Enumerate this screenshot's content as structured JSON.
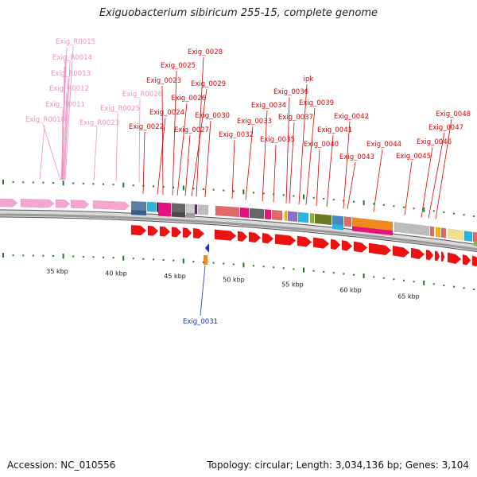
{
  "title": "Exiguobacterium sibiricum 255-15, complete genome",
  "footer": {
    "accession": "Accession: NC_010556",
    "topology": "Topology: circular; Length: 3,034,136 bp; Genes: 3,104"
  },
  "colors": {
    "forward_rna": "#f4a6cf",
    "reverse_cds": "#ee1111",
    "forward_label": "#dd0000",
    "rna_label": "#f08fbf",
    "reverse_label": "#1a2fcc",
    "tick": "#1f7a1f",
    "backbone": "#b8b8b8"
  },
  "scale": {
    "ticks": [
      "35 kbp",
      "40 kbp",
      "45 kbp",
      "50 kbp",
      "55 kbp",
      "60 kbp",
      "65 kbp"
    ]
  },
  "rna_labels": [
    "Exig_R0015",
    "Exig_R0014",
    "Exig_R0013",
    "Exig_R0012",
    "Exig_R0011",
    "Exig_R0010",
    "Exig_R0026",
    "Exig_R0025",
    "Exig_R0023"
  ],
  "gene_labels": [
    "Exig_0028",
    "Exig_0025",
    "Exig_0023",
    "Exig_0029",
    "Exig_0026",
    "Exig_0024",
    "Exig_0030",
    "Exig_0027",
    "Exig_0022",
    "Exig_0033",
    "Exig_0032",
    "ipk",
    "Exig_0036",
    "Exig_0034",
    "Exig_0039",
    "Exig_0037",
    "Exig_0035",
    "Exig_0042",
    "Exig_0041",
    "Exig_0040",
    "Exig_0048",
    "Exig_0047",
    "Exig_0044",
    "Exig_0046",
    "Exig_0043",
    "Exig_0045"
  ],
  "reverse_labels": [
    "Exig_0031"
  ]
}
